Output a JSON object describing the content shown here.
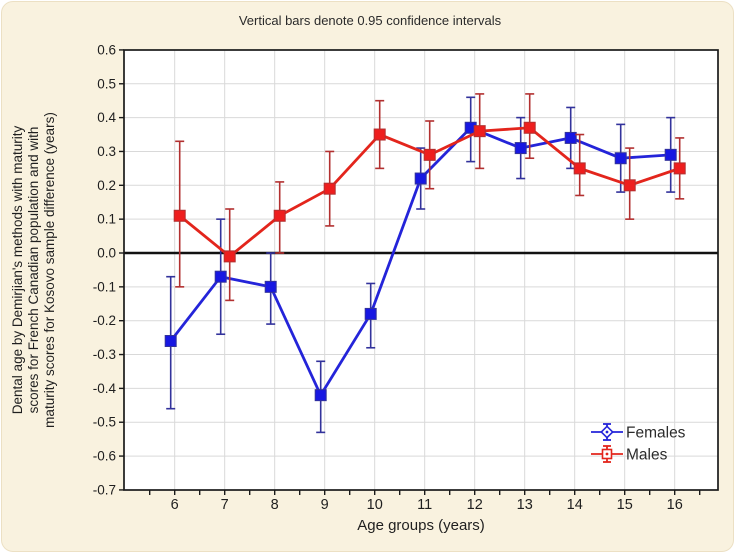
{
  "figure": {
    "page_background": "#ffffff",
    "card_background": "#f9f2df",
    "card_border": "#ece0c4",
    "plot_background": "#ffffff",
    "grid_color": "#d9d9d9",
    "frame_color": "#1a1a1a",
    "zero_line_color": "#111111",
    "text_color": "#1f1f1f"
  },
  "chart_data": {
    "type": "line",
    "title": "Vertical bars denote 0.95 confidence intervals",
    "xlabel": "Age groups (years)",
    "ylabel": "Dental age by Demirjian's methods with maturity scores for French Canadian population and with maturity scores for Kosovo sample difference (years)",
    "ylabel_lines": [
      "Dental age by Demirjian's methods with maturity",
      "scores for French Canadian population and with",
      "maturity scores for Kosovo sample difference (years)"
    ],
    "categories": [
      6,
      7,
      8,
      9,
      10,
      11,
      12,
      13,
      14,
      15,
      16
    ],
    "ylim": [
      -0.7,
      0.6
    ],
    "ytick_step": 0.1,
    "grid": true,
    "zero_line": true,
    "error_bars": "0.95 confidence intervals",
    "legend_position": "inside-bottom-right",
    "series": [
      {
        "name": "Females",
        "line_color": "#2424d9",
        "marker_color": "#1717e2",
        "error_color": "#32329b",
        "marker": "square",
        "legend_marker": "diamond",
        "x_offset": -4,
        "values": [
          -0.26,
          -0.07,
          -0.1,
          -0.42,
          -0.18,
          0.22,
          0.37,
          0.31,
          0.34,
          0.28,
          0.29
        ],
        "ci_low": [
          -0.46,
          -0.24,
          -0.21,
          -0.53,
          -0.28,
          0.13,
          0.27,
          0.22,
          0.25,
          0.18,
          0.18
        ],
        "ci_high": [
          -0.07,
          0.1,
          0.0,
          -0.32,
          -0.09,
          0.31,
          0.46,
          0.4,
          0.43,
          0.38,
          0.4
        ]
      },
      {
        "name": "Males",
        "line_color": "#e3251c",
        "marker_color": "#ee1e1e",
        "error_color": "#b23030",
        "marker": "square",
        "legend_marker": "square",
        "x_offset": 5,
        "values": [
          0.11,
          -0.01,
          0.11,
          0.19,
          0.35,
          0.29,
          0.36,
          0.37,
          0.25,
          0.2,
          0.25
        ],
        "ci_low": [
          -0.1,
          -0.14,
          0.0,
          0.08,
          0.25,
          0.19,
          0.25,
          0.28,
          0.17,
          0.1,
          0.16
        ],
        "ci_high": [
          0.33,
          0.13,
          0.21,
          0.3,
          0.45,
          0.39,
          0.47,
          0.47,
          0.35,
          0.31,
          0.34
        ]
      }
    ]
  }
}
